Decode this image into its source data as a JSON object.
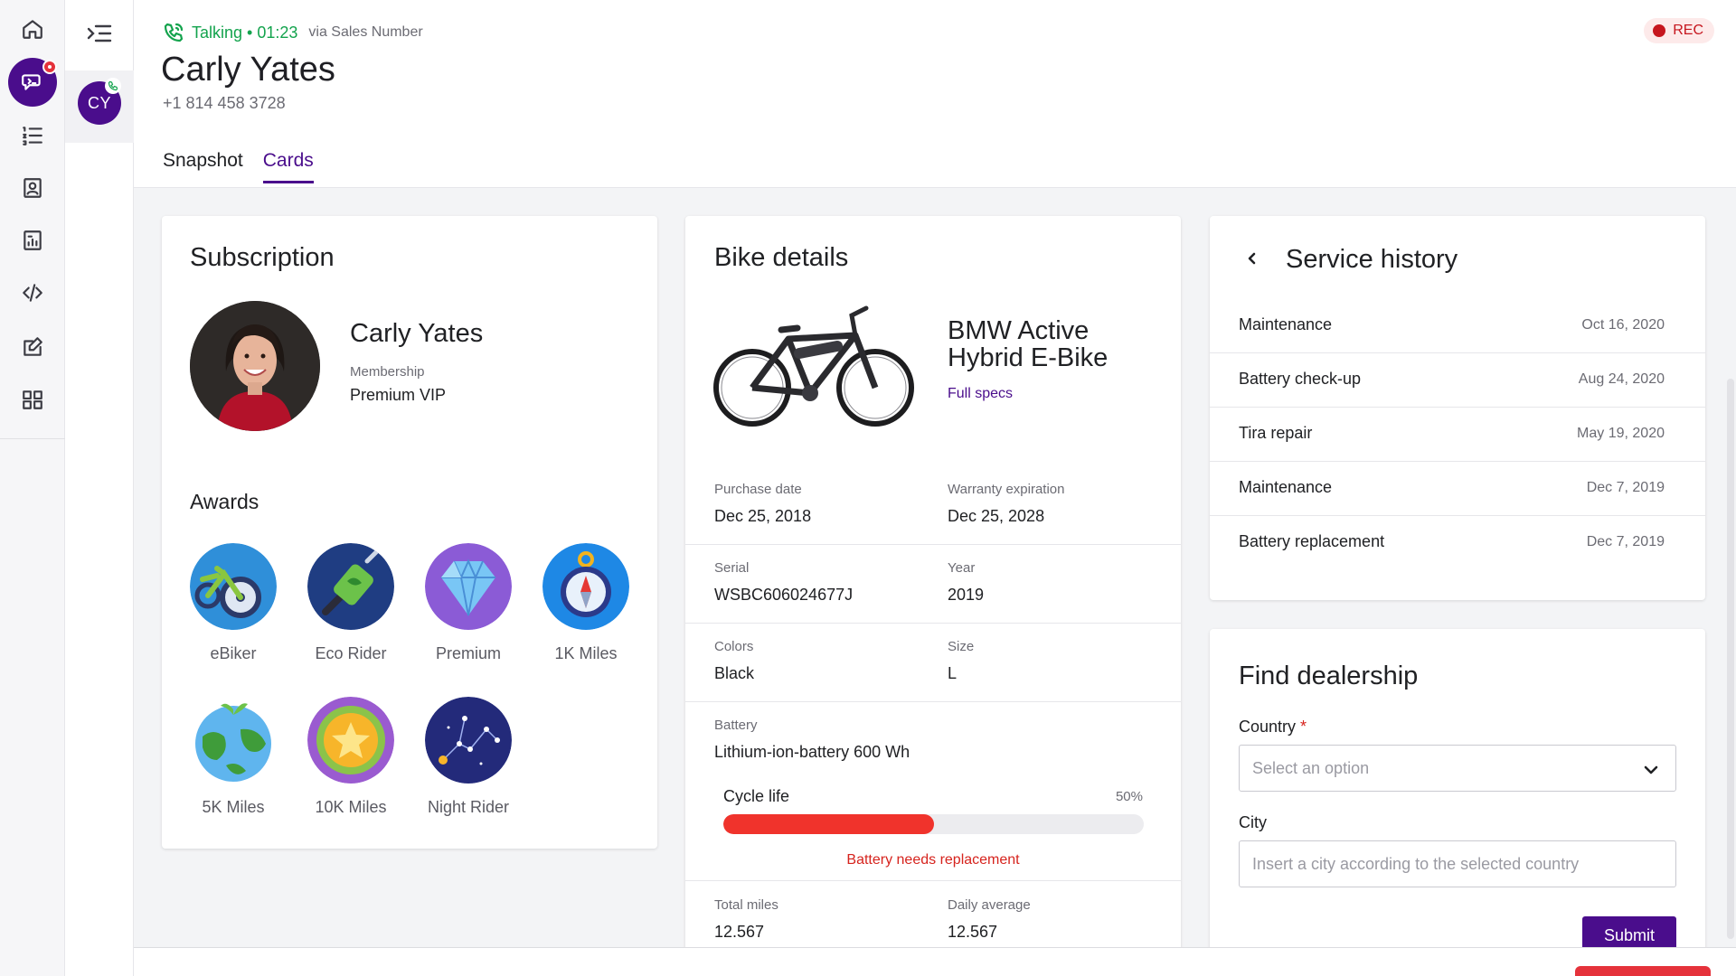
{
  "rail": {
    "items": [
      {
        "name": "home",
        "icon": "home-icon"
      },
      {
        "name": "conversations",
        "icon": "chat-icon",
        "active": true,
        "badge": true
      },
      {
        "name": "lists",
        "icon": "list-icon"
      },
      {
        "name": "contacts",
        "icon": "contact-card-icon"
      },
      {
        "name": "reports",
        "icon": "reports-icon"
      },
      {
        "name": "developer",
        "icon": "code-icon"
      },
      {
        "name": "notes",
        "icon": "edit-icon"
      },
      {
        "name": "apps",
        "icon": "grid-icon"
      }
    ]
  },
  "active_call": {
    "initials": "CY"
  },
  "header": {
    "status": "Talking • 01:23",
    "via": "via Sales Number",
    "name": "Carly Yates",
    "phone": "+1 814 458 3728",
    "rec": "REC",
    "tabs": [
      {
        "label": "Snapshot",
        "active": false
      },
      {
        "label": "Cards",
        "active": true
      }
    ]
  },
  "subscription": {
    "title": "Subscription",
    "name": "Carly Yates",
    "membership_label": "Membership",
    "membership_value": "Premium VIP",
    "awards_title": "Awards",
    "awards": [
      {
        "label": "eBiker",
        "icon": "ebike-badge-icon"
      },
      {
        "label": "Eco Rider",
        "icon": "eco-rider-badge-icon"
      },
      {
        "label": "Premium",
        "icon": "diamond-badge-icon"
      },
      {
        "label": "1K Miles",
        "icon": "compass-badge-icon"
      },
      {
        "label": "5K Miles",
        "icon": "globe-badge-icon"
      },
      {
        "label": "10K Miles",
        "icon": "star-medal-badge-icon"
      },
      {
        "label": "Night Rider",
        "icon": "constellation-badge-icon"
      }
    ]
  },
  "bike": {
    "title": "Bike details",
    "model": "BMW Active Hybrid E-Bike",
    "full_specs": "Full specs",
    "purchase_label": "Purchase date",
    "purchase_value": "Dec 25, 2018",
    "warranty_label": "Warranty expiration",
    "warranty_value": "Dec 25, 2028",
    "serial_label": "Serial",
    "serial_value": "WSBC606024677J",
    "year_label": "Year",
    "year_value": "2019",
    "colors_label": "Colors",
    "colors_value": "Black",
    "size_label": "Size",
    "size_value": "L",
    "battery_label": "Battery",
    "battery_value": "Lithium-ion-battery 600 Wh",
    "cycle_label": "Cycle life",
    "cycle_pct_text": "50%",
    "cycle_fraction": 0.5,
    "battery_warning": "Battery needs replacement",
    "total_miles_label": "Total miles",
    "total_miles_value": "12.567",
    "daily_avg_label": "Daily average",
    "daily_avg_value": "12.567"
  },
  "service_history": {
    "title": "Service history",
    "rows": [
      {
        "name": "Maintenance",
        "date": "Oct 16, 2020"
      },
      {
        "name": "Battery check-up",
        "date": "Aug 24, 2020"
      },
      {
        "name": "Tira repair",
        "date": "May 19, 2020"
      },
      {
        "name": "Maintenance",
        "date": "Dec 7, 2019"
      },
      {
        "name": "Battery replacement",
        "date": "Dec 7, 2019"
      }
    ]
  },
  "dealership": {
    "title": "Find dealership",
    "country_label": "Country",
    "required_mark": "*",
    "country_placeholder": "Select an option",
    "city_label": "City",
    "city_placeholder": "Insert a city according to the selected country",
    "submit": "Submit"
  },
  "colors": {
    "brand": "#4a0d8c",
    "talking_green": "#13a34d",
    "alert_red": "#f0332c"
  }
}
